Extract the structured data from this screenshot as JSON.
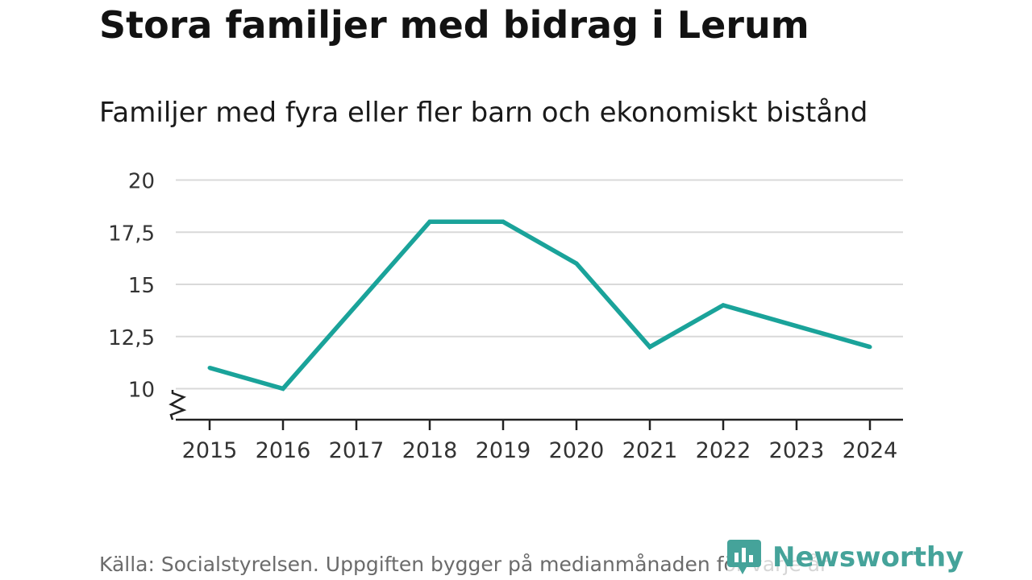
{
  "title": "Stora familjer med bidrag i Lerum",
  "source": "Källa: Socialstyrelsen. Uppgiften bygger på medianmånaden för varje år",
  "brand": {
    "name": "Newsworthy",
    "icon": "newsworthy-logo-icon",
    "color": "#45a39a"
  },
  "colors": {
    "line": "#1aa39a",
    "grid": "#d9d9d9",
    "axis": "#222222",
    "text": "#333333"
  },
  "chart_data": {
    "type": "line",
    "title": "Familjer med fyra eller fler barn och ekonomiskt bistånd",
    "xlabel": "",
    "ylabel": "",
    "categories": [
      "2015",
      "2016",
      "2017",
      "2018",
      "2019",
      "2020",
      "2021",
      "2022",
      "2023",
      "2024"
    ],
    "series": [
      {
        "name": "Familjer",
        "values": [
          11,
          10,
          14,
          18,
          18,
          16,
          12,
          14,
          13,
          12
        ]
      }
    ],
    "ylim": [
      8.5,
      20
    ],
    "yticks": [
      10,
      12.5,
      15,
      17.5,
      20
    ],
    "ytick_labels": [
      "10",
      "12,5",
      "15",
      "17,5",
      "20"
    ],
    "grid": true,
    "axis_break": true
  }
}
